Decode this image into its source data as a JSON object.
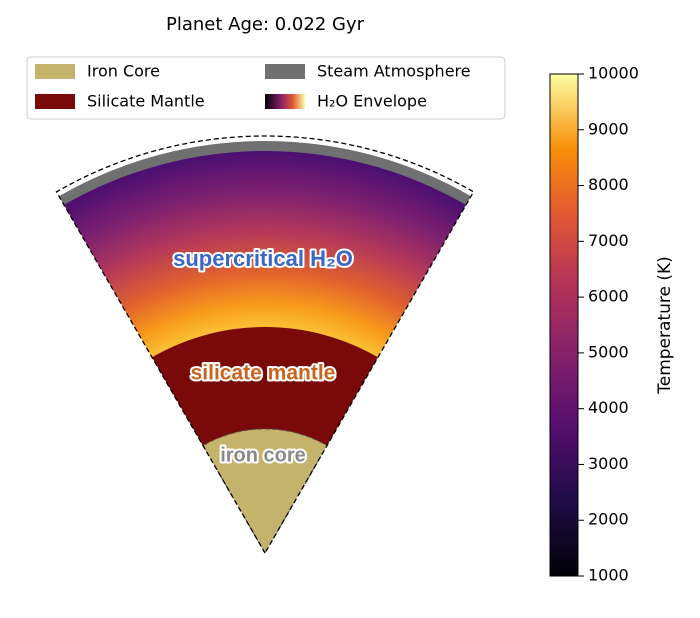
{
  "title": "Planet Age: 0.022 Gyr",
  "legend": [
    "Iron Core",
    "Steam Atmosphere",
    "Silicate Mantle",
    "H₂O Envelope"
  ],
  "layers": [
    "supercritical H₂O",
    "silicate mantle",
    "iron core"
  ],
  "colorbar": {
    "label": "Temperature (K)",
    "lim": [
      1000,
      10000
    ],
    "ticks": [
      1000,
      2000,
      3000,
      4000,
      5000,
      6000,
      7000,
      8000,
      9000,
      10000
    ]
  }
}
